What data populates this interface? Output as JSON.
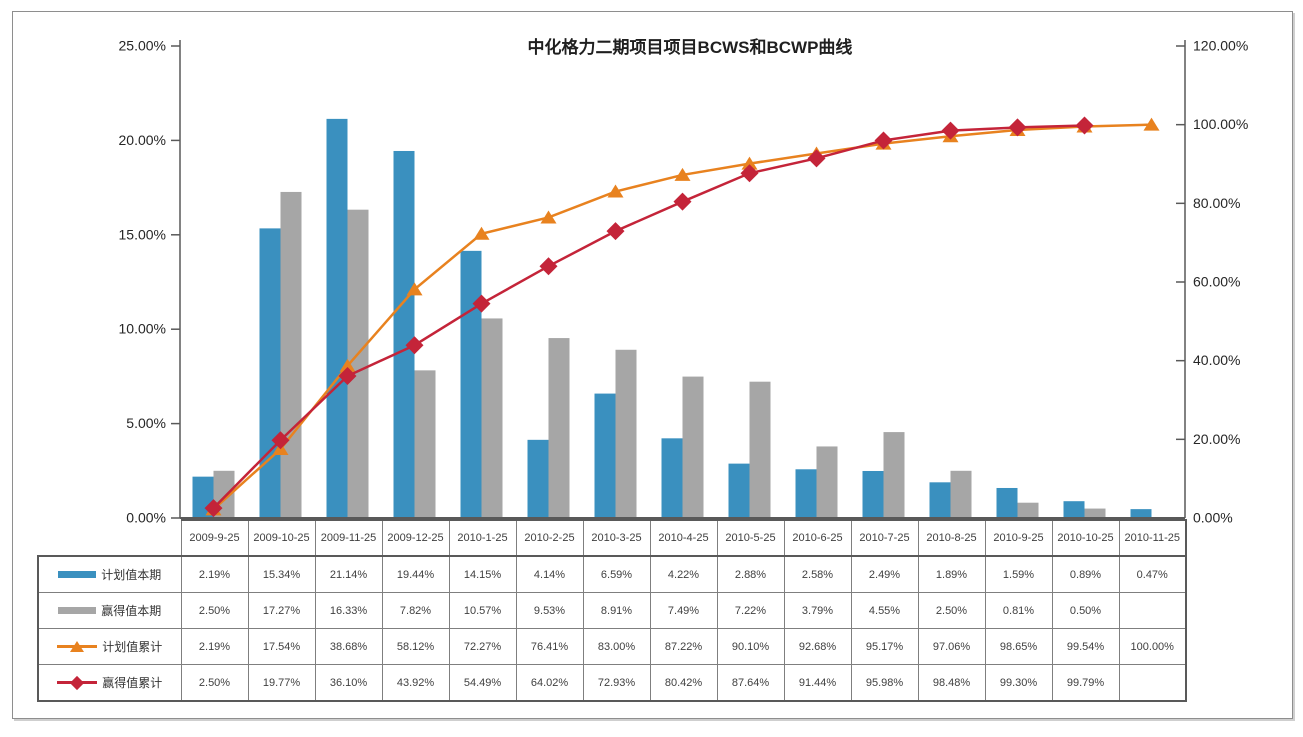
{
  "chart_data": {
    "type": "combo-bar-line",
    "title": "中化格力二期项目项目BCWS和BCWP曲线",
    "categories": [
      "2009-9-25",
      "2009-10-25",
      "2009-11-25",
      "2009-12-25",
      "2010-1-25",
      "2010-2-25",
      "2010-3-25",
      "2010-4-25",
      "2010-5-25",
      "2010-6-25",
      "2010-7-25",
      "2010-8-25",
      "2010-9-25",
      "2010-10-25",
      "2010-11-25"
    ],
    "series": [
      {
        "name": "计划值本期",
        "slug": "planned-current",
        "kind": "bar",
        "axis": "left",
        "color": "#3A90BF",
        "marker": "rect",
        "values": [
          "2.19%",
          "15.34%",
          "21.14%",
          "19.44%",
          "14.15%",
          "4.14%",
          "6.59%",
          "4.22%",
          "2.88%",
          "2.58%",
          "2.49%",
          "1.89%",
          "1.59%",
          "0.89%",
          "0.47%"
        ]
      },
      {
        "name": "赢得值本期",
        "slug": "earned-current",
        "kind": "bar",
        "axis": "left",
        "color": "#A6A6A6",
        "marker": "rect",
        "values": [
          "2.50%",
          "17.27%",
          "16.33%",
          "7.82%",
          "10.57%",
          "9.53%",
          "8.91%",
          "7.49%",
          "7.22%",
          "3.79%",
          "4.55%",
          "2.50%",
          "0.81%",
          "0.50%",
          ""
        ]
      },
      {
        "name": "计划值累计",
        "slug": "planned-cumulative",
        "kind": "line",
        "axis": "right",
        "color": "#E8821F",
        "marker": "triangle",
        "values": [
          "2.19%",
          "17.54%",
          "38.68%",
          "58.12%",
          "72.27%",
          "76.41%",
          "83.00%",
          "87.22%",
          "90.10%",
          "92.68%",
          "95.17%",
          "97.06%",
          "98.65%",
          "99.54%",
          "100.00%"
        ]
      },
      {
        "name": "赢得值累计",
        "slug": "earned-cumulative",
        "kind": "line",
        "axis": "right",
        "color": "#C42439",
        "marker": "diamond",
        "values": [
          "2.50%",
          "19.77%",
          "36.10%",
          "43.92%",
          "54.49%",
          "64.02%",
          "72.93%",
          "80.42%",
          "87.64%",
          "91.44%",
          "95.98%",
          "98.48%",
          "99.30%",
          "99.79%",
          ""
        ]
      }
    ],
    "left_axis": {
      "max": 25,
      "labels": [
        "0.00%",
        "5.00%",
        "10.00%",
        "15.00%",
        "20.00%",
        "25.00%"
      ]
    },
    "right_axis": {
      "max": 120,
      "labels": [
        "0.00%",
        "20.00%",
        "40.00%",
        "60.00%",
        "80.00%",
        "100.00%",
        "120.00%"
      ]
    },
    "grid": false,
    "legend_position": "table-left",
    "axis_color": "#595959",
    "table_border_color": "#7f7f7f"
  }
}
